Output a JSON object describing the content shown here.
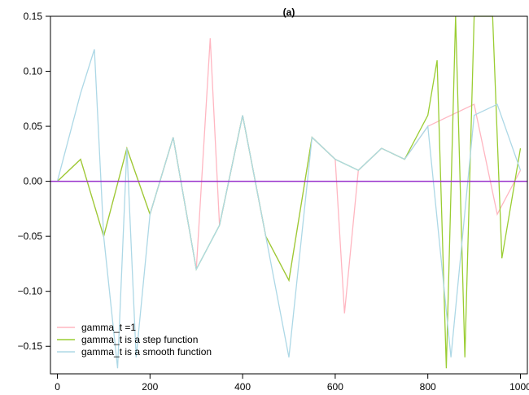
{
  "chart_data": {
    "type": "line",
    "title": "(a)",
    "xlabel": "",
    "ylabel": "",
    "xlim": [
      -15,
      1015
    ],
    "ylim": [
      -0.175,
      0.15
    ],
    "xticks": [
      0,
      200,
      400,
      600,
      800,
      1000
    ],
    "xtick_labels": [
      "0",
      "200",
      "400",
      "600",
      "800",
      "1000"
    ],
    "yticks": [
      -0.15,
      -0.1,
      -0.05,
      0.0,
      0.05,
      0.1,
      0.15
    ],
    "ytick_labels": [
      "−0.15",
      "−0.10",
      "−0.05",
      "0.00",
      "0.05",
      "0.10",
      "0.15"
    ],
    "grid": false,
    "legend_position": "bottom-left",
    "series": [
      {
        "name": "gamma_t =1",
        "color": "#FFB6C1",
        "x": [
          0,
          50,
          100,
          150,
          200,
          250,
          300,
          330,
          350,
          400,
          450,
          500,
          550,
          600,
          620,
          650,
          700,
          750,
          800,
          850,
          900,
          950,
          1000
        ],
        "values": [
          0.0,
          0.02,
          -0.05,
          0.03,
          -0.03,
          0.04,
          -0.08,
          0.13,
          -0.04,
          0.06,
          -0.05,
          -0.09,
          0.04,
          0.02,
          -0.12,
          0.01,
          0.03,
          0.02,
          0.05,
          0.06,
          0.07,
          -0.03,
          0.01
        ]
      },
      {
        "name": "gamma_t is a step function",
        "color": "#9ACD32",
        "x": [
          0,
          50,
          100,
          150,
          200,
          250,
          300,
          350,
          400,
          450,
          500,
          550,
          600,
          650,
          700,
          750,
          800,
          820,
          840,
          860,
          880,
          900,
          940,
          960,
          1000
        ],
        "values": [
          0.0,
          0.02,
          -0.05,
          0.03,
          -0.03,
          0.04,
          -0.08,
          -0.04,
          0.06,
          -0.05,
          -0.09,
          0.04,
          0.02,
          0.01,
          0.03,
          0.02,
          0.06,
          0.11,
          -0.17,
          0.15,
          -0.16,
          0.15,
          0.15,
          -0.07,
          0.03
        ]
      },
      {
        "name": "gamma_t is a smooth function",
        "color": "#ADD8E6",
        "x": [
          0,
          50,
          80,
          100,
          130,
          150,
          170,
          200,
          250,
          300,
          350,
          400,
          450,
          500,
          550,
          600,
          650,
          700,
          750,
          800,
          850,
          900,
          950,
          1000
        ],
        "values": [
          0.0,
          0.08,
          0.12,
          -0.05,
          -0.17,
          0.03,
          -0.16,
          -0.03,
          0.04,
          -0.08,
          -0.04,
          0.06,
          -0.05,
          -0.16,
          0.04,
          0.02,
          0.01,
          0.03,
          0.02,
          0.05,
          -0.16,
          0.06,
          0.07,
          0.01
        ]
      }
    ],
    "reference_line": {
      "y": 0.0,
      "color": "#9932CC"
    }
  }
}
